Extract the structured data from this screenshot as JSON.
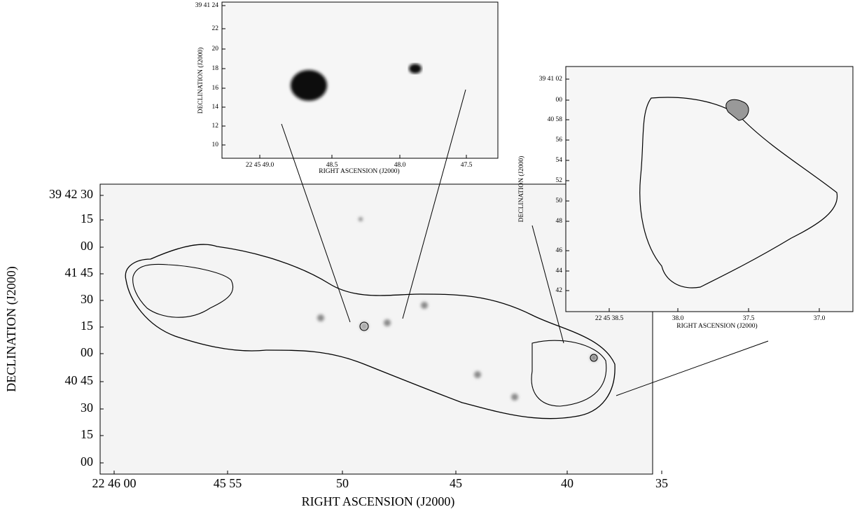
{
  "panels": [
    {
      "x_label": "RIGHT ASCENSION (J2000)",
      "y_label": "DECLINATION (J2000)",
      "x_ticks": [
        "22 46 00",
        "45 55",
        "50",
        "45",
        "40",
        "35"
      ],
      "y_ticks": [
        "39 42 30",
        "15",
        "00",
        "41 45",
        "30",
        "15",
        "00",
        "40 45",
        "30",
        "15",
        "00"
      ]
    },
    {
      "x_label": "RIGHT ASCENSION (J2000)",
      "y_label": "DECLINATION (J2000)",
      "x_ticks": [
        "22 45 49.0",
        "48.5",
        "48.0",
        "47.5"
      ],
      "y_ticks": [
        "39 41 24",
        "22",
        "20",
        "18",
        "16",
        "14",
        "12",
        "10"
      ]
    },
    {
      "x_label": "RIGHT ASCENSION (J2000)",
      "y_label": "DECLINATION (J2000)",
      "x_ticks": [
        "22 45 38.5",
        "38.0",
        "37.5",
        "37.0"
      ],
      "y_ticks": [
        "39 41 02",
        "00",
        "40 58",
        "56",
        "54",
        "52",
        "50",
        "48",
        "46",
        "44",
        "42"
      ]
    }
  ]
}
